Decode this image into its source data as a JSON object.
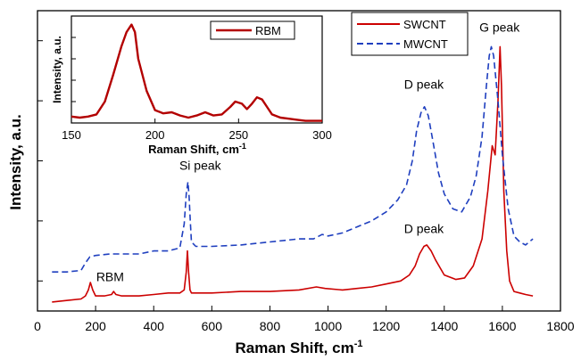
{
  "chart_data": [
    {
      "type": "line",
      "title": "",
      "xlabel": "Raman Shift, cm",
      "xlabel_sup": "-1",
      "ylabel": "Intensity, a.u.",
      "xlim": [
        0,
        1800
      ],
      "ylim": [
        0,
        1
      ],
      "x_ticks": [
        0,
        200,
        400,
        600,
        800,
        1000,
        1200,
        1400,
        1600,
        1800
      ],
      "y_ticks": [
        0.1,
        0.3,
        0.5,
        0.7,
        0.9
      ],
      "grid": false,
      "legend": "top-right",
      "series": [
        {
          "name": "SWCNT",
          "color": "#cc0000",
          "style": "solid",
          "x": [
            50,
            100,
            150,
            165,
            175,
            182,
            190,
            200,
            230,
            255,
            262,
            270,
            290,
            350,
            400,
            450,
            490,
            505,
            512,
            516,
            520,
            525,
            530,
            545,
            600,
            700,
            800,
            900,
            960,
            990,
            1050,
            1100,
            1150,
            1200,
            1250,
            1280,
            1300,
            1315,
            1330,
            1340,
            1355,
            1370,
            1400,
            1440,
            1470,
            1500,
            1530,
            1550,
            1565,
            1575,
            1585,
            1592,
            1597,
            1605,
            1615,
            1625,
            1640,
            1660,
            1680,
            1705
          ],
          "y": [
            0.03,
            0.035,
            0.04,
            0.05,
            0.07,
            0.095,
            0.07,
            0.05,
            0.05,
            0.055,
            0.065,
            0.055,
            0.05,
            0.05,
            0.055,
            0.06,
            0.06,
            0.07,
            0.13,
            0.2,
            0.13,
            0.07,
            0.06,
            0.06,
            0.06,
            0.065,
            0.065,
            0.07,
            0.08,
            0.075,
            0.07,
            0.075,
            0.08,
            0.09,
            0.1,
            0.12,
            0.15,
            0.19,
            0.215,
            0.22,
            0.2,
            0.17,
            0.12,
            0.105,
            0.11,
            0.15,
            0.24,
            0.4,
            0.55,
            0.52,
            0.7,
            0.88,
            0.75,
            0.4,
            0.2,
            0.1,
            0.065,
            0.06,
            0.055,
            0.05
          ]
        },
        {
          "name": "MWCNT",
          "color": "#1f3fbf",
          "style": "dashed",
          "x": [
            50,
            100,
            150,
            165,
            180,
            200,
            250,
            300,
            350,
            400,
            450,
            490,
            505,
            512,
            518,
            522,
            526,
            530,
            545,
            600,
            700,
            800,
            900,
            950,
            980,
            1000,
            1050,
            1100,
            1150,
            1200,
            1240,
            1270,
            1290,
            1305,
            1320,
            1332,
            1345,
            1360,
            1380,
            1400,
            1430,
            1460,
            1490,
            1510,
            1530,
            1545,
            1555,
            1562,
            1570,
            1585,
            1600,
            1620,
            1640,
            1660,
            1680,
            1705
          ],
          "y": [
            0.13,
            0.13,
            0.135,
            0.16,
            0.18,
            0.185,
            0.19,
            0.19,
            0.19,
            0.2,
            0.2,
            0.21,
            0.29,
            0.39,
            0.43,
            0.38,
            0.3,
            0.23,
            0.215,
            0.215,
            0.22,
            0.23,
            0.24,
            0.24,
            0.255,
            0.25,
            0.26,
            0.28,
            0.3,
            0.33,
            0.37,
            0.42,
            0.5,
            0.6,
            0.66,
            0.68,
            0.65,
            0.57,
            0.46,
            0.39,
            0.34,
            0.33,
            0.38,
            0.45,
            0.58,
            0.75,
            0.85,
            0.88,
            0.85,
            0.7,
            0.52,
            0.34,
            0.25,
            0.23,
            0.22,
            0.24
          ]
        }
      ],
      "annotations": [
        {
          "text": "G peak",
          "x": 1590,
          "y": 0.93
        },
        {
          "text": "D peak",
          "x": 1330,
          "y": 0.74
        },
        {
          "text": "Si peak",
          "x": 560,
          "y": 0.47
        },
        {
          "text": "D peak",
          "x": 1330,
          "y": 0.26
        },
        {
          "text": "RBM",
          "x": 250,
          "y": 0.1
        }
      ]
    },
    {
      "type": "line",
      "title": "",
      "xlabel": "Raman Shift, cm",
      "xlabel_sup": "-1",
      "ylabel": "Intensity, a.u.",
      "xlim": [
        150,
        300
      ],
      "ylim": [
        0,
        1
      ],
      "x_ticks": [
        150,
        200,
        250,
        300
      ],
      "legend": "top-right",
      "series": [
        {
          "name": "RBM",
          "color": "#b30000",
          "style": "solid",
          "x": [
            150,
            155,
            160,
            165,
            170,
            175,
            180,
            183,
            186,
            188,
            190,
            195,
            200,
            205,
            210,
            215,
            220,
            225,
            230,
            235,
            240,
            245,
            248,
            252,
            255,
            258,
            261,
            264,
            267,
            270,
            275,
            280,
            285,
            290,
            295,
            300
          ],
          "y": [
            0.06,
            0.05,
            0.06,
            0.08,
            0.2,
            0.45,
            0.72,
            0.85,
            0.92,
            0.85,
            0.6,
            0.3,
            0.12,
            0.09,
            0.1,
            0.07,
            0.05,
            0.07,
            0.1,
            0.07,
            0.08,
            0.15,
            0.2,
            0.18,
            0.13,
            0.18,
            0.24,
            0.22,
            0.15,
            0.08,
            0.05,
            0.04,
            0.03,
            0.02,
            0.02,
            0.02
          ]
        }
      ]
    }
  ]
}
